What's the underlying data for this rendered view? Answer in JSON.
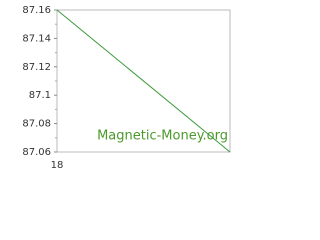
{
  "chart_data": {
    "type": "line",
    "categories": [
      "18",
      null
    ],
    "series": [
      {
        "color": "#3c9a3c",
        "values": [
          87.16,
          87.06
        ]
      }
    ],
    "ylim": [
      87.06,
      87.16
    ],
    "yticks": [
      87.06,
      87.08,
      87.1,
      87.12,
      87.14,
      87.16
    ],
    "grid": false,
    "annotation": "Magnetic-Money.org"
  }
}
